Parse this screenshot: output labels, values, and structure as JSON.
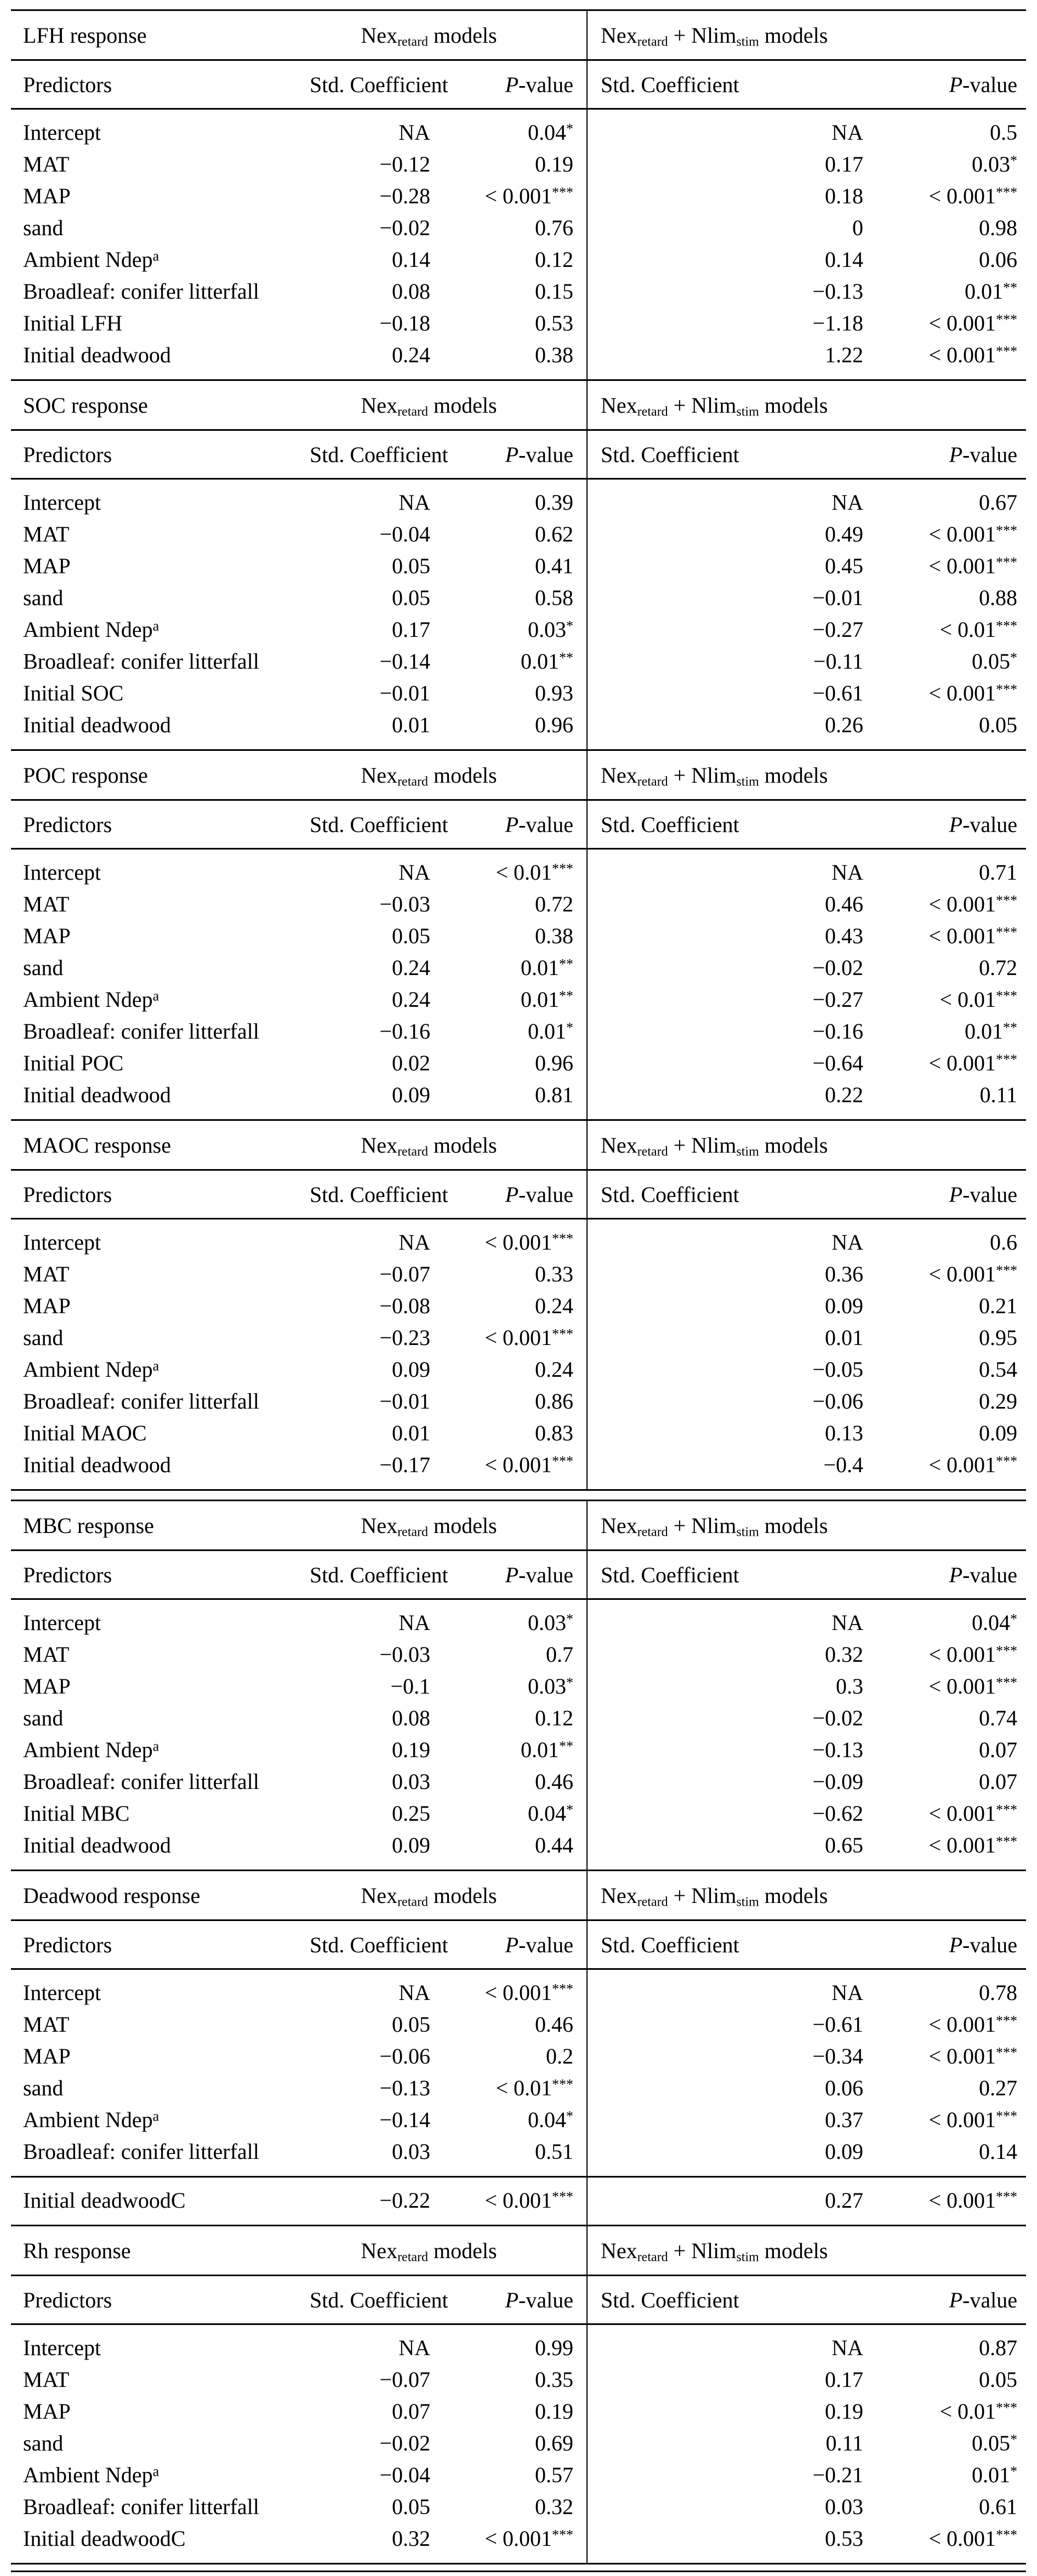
{
  "styles": {
    "background": "#ffffff",
    "text_color": "#000000",
    "rule_color": "#000000"
  },
  "column_headers": {
    "predictors": "Predictors",
    "std_coefficient": "Std. Coefficient",
    "p_value": "//P//-value"
  },
  "model_group_headers": {
    "group1": "Nex_{retard} models",
    "group2": "Nex_{retard} + Nlim_{stim} models"
  },
  "tables": [
    {
      "sections": [
        {
          "response": "LFH response",
          "rows": [
            {
              "predictor": "Intercept",
              "coef1": "NA",
              "p1": "0.04^{*}",
              "coef2": "NA",
              "p2": "0.5"
            },
            {
              "predictor": "MAT",
              "coef1": "−0.12",
              "p1": "0.19",
              "coef2": "0.17",
              "p2": "0.03^{*}"
            },
            {
              "predictor": "MAP",
              "coef1": "−0.28",
              "p1": "< 0.001^{***}",
              "coef2": "0.18",
              "p2": "< 0.001^{***}"
            },
            {
              "predictor": "sand",
              "coef1": "−0.02",
              "p1": "0.76",
              "coef2": "0",
              "p2": "0.98"
            },
            {
              "predictor": "Ambient Ndep^{a}",
              "coef1": "0.14",
              "p1": "0.12",
              "coef2": "0.14",
              "p2": "0.06"
            },
            {
              "predictor": "Broadleaf: conifer litterfall",
              "coef1": "0.08",
              "p1": "0.15",
              "coef2": "−0.13",
              "p2": "0.01^{**}"
            },
            {
              "predictor": "Initial LFH",
              "coef1": "−0.18",
              "p1": "0.53",
              "coef2": "−1.18",
              "p2": "< 0.001^{***}"
            },
            {
              "predictor": "Initial deadwood",
              "coef1": "0.24",
              "p1": "0.38",
              "coef2": "1.22",
              "p2": "< 0.001^{***}"
            }
          ]
        },
        {
          "response": "SOC response",
          "rows": [
            {
              "predictor": "Intercept",
              "coef1": "NA",
              "p1": "0.39",
              "coef2": "NA",
              "p2": "0.67"
            },
            {
              "predictor": "MAT",
              "coef1": "−0.04",
              "p1": "0.62",
              "coef2": "0.49",
              "p2": "< 0.001^{***}"
            },
            {
              "predictor": "MAP",
              "coef1": "0.05",
              "p1": "0.41",
              "coef2": "0.45",
              "p2": "< 0.001^{***}"
            },
            {
              "predictor": "sand",
              "coef1": "0.05",
              "p1": "0.58",
              "coef2": "−0.01",
              "p2": "0.88"
            },
            {
              "predictor": "Ambient Ndep^{a}",
              "coef1": "0.17",
              "p1": "0.03^{*}",
              "coef2": "−0.27",
              "p2": "< 0.01^{***}"
            },
            {
              "predictor": "Broadleaf: conifer litterfall",
              "coef1": "−0.14",
              "p1": "0.01^{**}",
              "coef2": "−0.11",
              "p2": "0.05^{*}"
            },
            {
              "predictor": "Initial SOC",
              "coef1": "−0.01",
              "p1": "0.93",
              "coef2": "−0.61",
              "p2": "< 0.001^{***}"
            },
            {
              "predictor": "Initial deadwood",
              "coef1": "0.01",
              "p1": "0.96",
              "coef2": "0.26",
              "p2": "0.05"
            }
          ]
        },
        {
          "response": "POC response",
          "rows": [
            {
              "predictor": "Intercept",
              "coef1": "NA",
              "p1": "< 0.01^{***}",
              "coef2": "NA",
              "p2": "0.71"
            },
            {
              "predictor": "MAT",
              "coef1": "−0.03",
              "p1": "0.72",
              "coef2": "0.46",
              "p2": "< 0.001^{***}"
            },
            {
              "predictor": "MAP",
              "coef1": "0.05",
              "p1": "0.38",
              "coef2": "0.43",
              "p2": "< 0.001^{***}"
            },
            {
              "predictor": "sand",
              "coef1": "0.24",
              "p1": "0.01^{**}",
              "coef2": "−0.02",
              "p2": "0.72"
            },
            {
              "predictor": "Ambient Ndep^{a}",
              "coef1": "0.24",
              "p1": "0.01^{**}",
              "coef2": "−0.27",
              "p2": "< 0.01^{***}"
            },
            {
              "predictor": "Broadleaf: conifer litterfall",
              "coef1": "−0.16",
              "p1": "0.01^{*}",
              "coef2": "−0.16",
              "p2": "0.01^{**}"
            },
            {
              "predictor": "Initial POC",
              "coef1": "0.02",
              "p1": "0.96",
              "coef2": "−0.64",
              "p2": "< 0.001^{***}"
            },
            {
              "predictor": "Initial deadwood",
              "coef1": "0.09",
              "p1": "0.81",
              "coef2": "0.22",
              "p2": "0.11"
            }
          ]
        },
        {
          "response": "MAOC response",
          "rows": [
            {
              "predictor": "Intercept",
              "coef1": "NA",
              "p1": "< 0.001^{***}",
              "coef2": "NA",
              "p2": "0.6"
            },
            {
              "predictor": "MAT",
              "coef1": "−0.07",
              "p1": "0.33",
              "coef2": "0.36",
              "p2": "< 0.001^{***}"
            },
            {
              "predictor": "MAP",
              "coef1": "−0.08",
              "p1": "0.24",
              "coef2": "0.09",
              "p2": "0.21"
            },
            {
              "predictor": "sand",
              "coef1": "−0.23",
              "p1": "< 0.001^{***}",
              "coef2": "0.01",
              "p2": "0.95"
            },
            {
              "predictor": "Ambient Ndep^{a}",
              "coef1": "0.09",
              "p1": "0.24",
              "coef2": "−0.05",
              "p2": "0.54"
            },
            {
              "predictor": "Broadleaf: conifer litterfall",
              "coef1": "−0.01",
              "p1": "0.86",
              "coef2": "−0.06",
              "p2": "0.29"
            },
            {
              "predictor": "Initial MAOC",
              "coef1": "0.01",
              "p1": "0.83",
              "coef2": "0.13",
              "p2": "0.09"
            },
            {
              "predictor": "Initial deadwood",
              "coef1": "−0.17",
              "p1": "< 0.001^{***}",
              "coef2": "−0.4",
              "p2": "< 0.001^{***}"
            }
          ]
        }
      ]
    },
    {
      "sections": [
        {
          "response": "MBC response",
          "rows": [
            {
              "predictor": "Intercept",
              "coef1": "NA",
              "p1": "0.03^{*}",
              "coef2": "NA",
              "p2": "0.04^{*}"
            },
            {
              "predictor": "MAT",
              "coef1": "−0.03",
              "p1": "0.7",
              "coef2": "0.32",
              "p2": "< 0.001^{***}"
            },
            {
              "predictor": "MAP",
              "coef1": "−0.1",
              "p1": "0.03^{*}",
              "coef2": "0.3",
              "p2": "< 0.001^{***}"
            },
            {
              "predictor": "sand",
              "coef1": "0.08",
              "p1": "0.12",
              "coef2": "−0.02",
              "p2": "0.74"
            },
            {
              "predictor": "Ambient Ndep^{a}",
              "coef1": "0.19",
              "p1": "0.01^{**}",
              "coef2": "−0.13",
              "p2": "0.07"
            },
            {
              "predictor": "Broadleaf: conifer litterfall",
              "coef1": "0.03",
              "p1": "0.46",
              "coef2": "−0.09",
              "p2": "0.07"
            },
            {
              "predictor": "Initial MBC",
              "coef1": "0.25",
              "p1": "0.04^{*}",
              "coef2": "−0.62",
              "p2": "< 0.001^{***}"
            },
            {
              "predictor": "Initial deadwood",
              "coef1": "0.09",
              "p1": "0.44",
              "coef2": "0.65",
              "p2": "< 0.001^{***}"
            }
          ]
        },
        {
          "response": "Deadwood response",
          "rows": [
            {
              "predictor": "Intercept",
              "coef1": "NA",
              "p1": "< 0.001^{***}",
              "coef2": "NA",
              "p2": "0.78"
            },
            {
              "predictor": "MAT",
              "coef1": "0.05",
              "p1": "0.46",
              "coef2": "−0.61",
              "p2": "< 0.001^{***}"
            },
            {
              "predictor": "MAP",
              "coef1": "−0.06",
              "p1": "0.2",
              "coef2": "−0.34",
              "p2": "< 0.001^{***}"
            },
            {
              "predictor": "sand",
              "coef1": "−0.13",
              "p1": "< 0.01^{***}",
              "coef2": "0.06",
              "p2": "0.27"
            },
            {
              "predictor": "Ambient Ndep^{a}",
              "coef1": "−0.14",
              "p1": "0.04^{*}",
              "coef2": "0.37",
              "p2": "< 0.001^{***}"
            },
            {
              "predictor": "Broadleaf: conifer litterfall",
              "coef1": "0.03",
              "p1": "0.51",
              "coef2": "0.09",
              "p2": "0.14"
            }
          ],
          "separated_rows": [
            {
              "predictor": "Initial deadwoodC",
              "coef1": "−0.22",
              "p1": "< 0.001^{***}",
              "coef2": "0.27",
              "p2": "< 0.001^{***}"
            }
          ]
        },
        {
          "response": "Rh response",
          "rows": [
            {
              "predictor": "Intercept",
              "coef1": "NA",
              "p1": "0.99",
              "coef2": "NA",
              "p2": "0.87"
            },
            {
              "predictor": "MAT",
              "coef1": "−0.07",
              "p1": "0.35",
              "coef2": "0.17",
              "p2": "0.05"
            },
            {
              "predictor": "MAP",
              "coef1": "0.07",
              "p1": "0.19",
              "coef2": "0.19",
              "p2": "< 0.01^{***}"
            },
            {
              "predictor": "sand",
              "coef1": "−0.02",
              "p1": "0.69",
              "coef2": "0.11",
              "p2": "0.05^{*}"
            },
            {
              "predictor": "Ambient Ndep^{a}",
              "coef1": "−0.04",
              "p1": "0.57",
              "coef2": "−0.21",
              "p2": "0.01^{*}"
            },
            {
              "predictor": "Broadleaf: conifer litterfall",
              "coef1": "0.05",
              "p1": "0.32",
              "coef2": "0.03",
              "p2": "0.61"
            },
            {
              "predictor": "Initial deadwoodC",
              "coef1": "0.32",
              "p1": "< 0.001^{***}",
              "coef2": "0.53",
              "p2": "< 0.001^{***}"
            }
          ]
        }
      ]
    }
  ]
}
